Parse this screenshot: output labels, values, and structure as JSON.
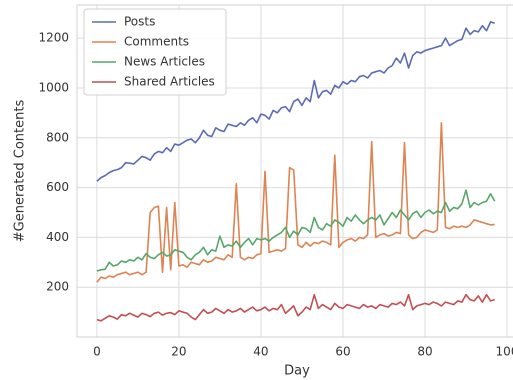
{
  "chart_data": {
    "type": "line",
    "xlabel": "Day",
    "ylabel": "#Generated Contents",
    "x": [
      0,
      1,
      2,
      3,
      4,
      5,
      6,
      7,
      8,
      9,
      10,
      11,
      12,
      13,
      14,
      15,
      16,
      17,
      18,
      19,
      20,
      21,
      22,
      23,
      24,
      25,
      26,
      27,
      28,
      29,
      30,
      31,
      32,
      33,
      34,
      35,
      36,
      37,
      38,
      39,
      40,
      41,
      42,
      43,
      44,
      45,
      46,
      47,
      48,
      49,
      50,
      51,
      52,
      53,
      54,
      55,
      56,
      57,
      58,
      59,
      60,
      61,
      62,
      63,
      64,
      65,
      66,
      67,
      68,
      69,
      70,
      71,
      72,
      73,
      74,
      75,
      76,
      77,
      78,
      79,
      80,
      81,
      82,
      83,
      84,
      85,
      86,
      87,
      88,
      89,
      90,
      91,
      92,
      93,
      94,
      95,
      96,
      97
    ],
    "series": [
      {
        "name": "Posts",
        "color": "#5b6cb5",
        "values": [
          625,
          640,
          648,
          660,
          668,
          672,
          680,
          700,
          698,
          695,
          710,
          725,
          720,
          710,
          735,
          745,
          740,
          760,
          745,
          775,
          770,
          780,
          790,
          795,
          780,
          800,
          830,
          810,
          805,
          840,
          830,
          825,
          855,
          850,
          845,
          860,
          850,
          870,
          880,
          860,
          895,
          890,
          875,
          910,
          900,
          920,
          925,
          905,
          945,
          955,
          930,
          960,
          945,
          1030,
          960,
          985,
          990,
          975,
          1010,
          1000,
          1025,
          1015,
          1030,
          1025,
          1045,
          1050,
          1040,
          1060,
          1065,
          1070,
          1060,
          1080,
          1090,
          1120,
          1100,
          1140,
          1080,
          1130,
          1145,
          1140,
          1150,
          1155,
          1160,
          1165,
          1170,
          1200,
          1170,
          1180,
          1190,
          1195,
          1240,
          1215,
          1230,
          1225,
          1250,
          1230,
          1265,
          1260
        ]
      },
      {
        "name": "Comments",
        "color": "#dd8452",
        "values": [
          220,
          240,
          235,
          245,
          240,
          250,
          255,
          260,
          250,
          255,
          260,
          250,
          260,
          500,
          520,
          525,
          260,
          520,
          270,
          540,
          285,
          290,
          280,
          300,
          295,
          290,
          310,
          300,
          305,
          320,
          315,
          310,
          330,
          320,
          615,
          320,
          310,
          320,
          315,
          330,
          335,
          665,
          340,
          345,
          350,
          345,
          355,
          680,
          670,
          370,
          360,
          380,
          365,
          380,
          375,
          385,
          380,
          370,
          730,
          360,
          380,
          390,
          395,
          385,
          400,
          395,
          410,
          785,
          400,
          410,
          415,
          405,
          410,
          420,
          415,
          780,
          410,
          395,
          400,
          420,
          430,
          425,
          420,
          430,
          860,
          440,
          435,
          445,
          440,
          445,
          440,
          450,
          470,
          465,
          460,
          455,
          450,
          452
        ]
      },
      {
        "name": "News Articles",
        "color": "#55a868",
        "values": [
          265,
          270,
          272,
          300,
          285,
          290,
          305,
          300,
          310,
          305,
          320,
          310,
          335,
          320,
          315,
          330,
          340,
          325,
          330,
          350,
          345,
          340,
          320,
          310,
          330,
          340,
          360,
          330,
          350,
          345,
          405,
          360,
          370,
          365,
          385,
          360,
          380,
          395,
          370,
          395,
          390,
          395,
          385,
          400,
          410,
          420,
          440,
          400,
          425,
          410,
          440,
          435,
          420,
          480,
          440,
          430,
          455,
          445,
          470,
          460,
          445,
          480,
          465,
          490,
          470,
          455,
          470,
          480,
          470,
          490,
          450,
          475,
          500,
          480,
          510,
          490,
          470,
          495,
          505,
          480,
          500,
          510,
          495,
          505,
          500,
          540,
          505,
          520,
          515,
          535,
          590,
          520,
          540,
          530,
          540,
          545,
          575,
          545
        ]
      },
      {
        "name": "Shared Articles",
        "color": "#c44e52",
        "values": [
          70,
          65,
          75,
          85,
          80,
          72,
          90,
          85,
          95,
          88,
          80,
          95,
          90,
          82,
          95,
          100,
          88,
          95,
          98,
          90,
          105,
          100,
          95,
          80,
          70,
          90,
          110,
          95,
          100,
          115,
          105,
          95,
          110,
          100,
          105,
          115,
          100,
          110,
          120,
          105,
          110,
          120,
          105,
          115,
          110,
          130,
          95,
          110,
          125,
          85,
          100,
          120,
          110,
          170,
          115,
          130,
          120,
          110,
          135,
          120,
          115,
          130,
          125,
          120,
          115,
          130,
          120,
          125,
          115,
          130,
          125,
          120,
          135,
          130,
          140,
          125,
          170,
          110,
          125,
          130,
          135,
          130,
          140,
          135,
          125,
          140,
          135,
          130,
          145,
          140,
          170,
          150,
          145,
          165,
          140,
          170,
          145,
          150
        ]
      }
    ],
    "xlim": [
      -4.85,
      101.85
    ],
    "xticks": [
      0,
      20,
      40,
      60,
      80,
      100
    ],
    "ylim": [
      0,
      1333
    ],
    "yticks": [
      200,
      400,
      600,
      800,
      1000,
      1200
    ],
    "grid": true,
    "legend": "upper left"
  }
}
